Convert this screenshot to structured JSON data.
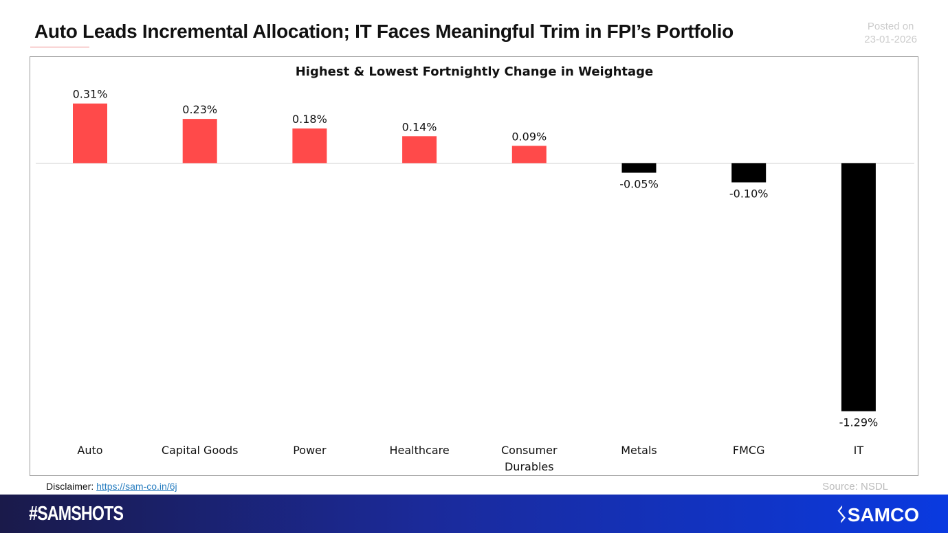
{
  "header": {
    "title": "Auto Leads Incremental Allocation; IT Faces Meaningful Trim in FPI’s Portfolio",
    "posted_label": "Posted on",
    "posted_date": "23-01-2026"
  },
  "chart_data": {
    "type": "bar",
    "title": "Highest & Lowest Fortnightly Change in Weightage",
    "categories": [
      "Auto",
      "Capital Goods",
      "Power",
      "Healthcare",
      "Consumer Durables",
      "Metals",
      "FMCG",
      "IT"
    ],
    "values": [
      0.31,
      0.23,
      0.18,
      0.14,
      0.09,
      -0.05,
      -0.1,
      -1.29
    ],
    "data_labels": [
      "0.31%",
      "0.23%",
      "0.18%",
      "0.14%",
      "0.09%",
      "-0.05%",
      "-0.10%",
      "-1.29%"
    ],
    "unit": "%",
    "ylim": [
      -1.29,
      0.31
    ],
    "grid": false,
    "colors": {
      "positive": "#ff4a4a",
      "negative": "#000000"
    }
  },
  "footer": {
    "disclaimer_label": "Disclaimer:",
    "disclaimer_link": "https://sam-co.in/6j",
    "source": "Source: NSDL",
    "hashtag": "#SAMSHOTS",
    "brand": "SAMCO"
  }
}
